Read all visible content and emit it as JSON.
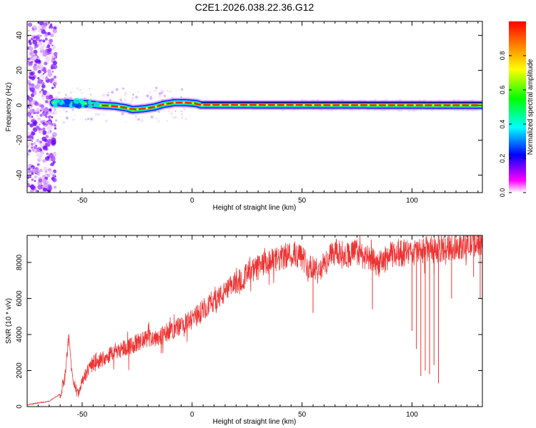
{
  "figure": {
    "title": "C2E1.2026.038.22.36.G12"
  },
  "chart_data": [
    {
      "type": "heatmap",
      "xlabel": "Height of straight line (km)",
      "ylabel": "Frequency (Hz)",
      "xlim": [
        -75,
        132
      ],
      "ylim": [
        -50,
        48
      ],
      "xticks": [
        -50,
        0,
        50,
        100
      ],
      "yticks": [
        -40,
        -20,
        0,
        20,
        40
      ],
      "colorbar": {
        "label": "Normalized spectral amplitude",
        "range": [
          0,
          1
        ],
        "ticks": [
          0.0,
          0.2,
          0.4,
          0.6,
          0.8
        ],
        "colormap": [
          "#ffffff",
          "#ff00ff",
          "#0000ff",
          "#00ffff",
          "#00ff00",
          "#ffff00",
          "#ff8000",
          "#ff0000"
        ]
      },
      "ridge": [
        {
          "x": -63,
          "y": 1.5
        },
        {
          "x": -55,
          "y": 1.0
        },
        {
          "x": -48,
          "y": 1.0
        },
        {
          "x": -42,
          "y": 0.0
        },
        {
          "x": -35,
          "y": -0.5
        },
        {
          "x": -30,
          "y": -1.5
        },
        {
          "x": -27,
          "y": -2.5
        },
        {
          "x": -22,
          "y": -2.0
        },
        {
          "x": -17,
          "y": -1.0
        },
        {
          "x": -13,
          "y": 0.5
        },
        {
          "x": -8,
          "y": 1.5
        },
        {
          "x": -3,
          "y": 1.5
        },
        {
          "x": 2,
          "y": 1.0
        },
        {
          "x": 4,
          "y": 0.2
        },
        {
          "x": 132,
          "y": 0.0
        }
      ],
      "noise_region_x": [
        -75,
        -62
      ]
    },
    {
      "type": "line",
      "xlabel": "Height of straight line (km)",
      "ylabel": "SNR (10 * v/v)",
      "xlim": [
        -75,
        132
      ],
      "ylim": [
        0,
        9500
      ],
      "xticks": [
        -50,
        0,
        50,
        100
      ],
      "yticks": [
        0,
        2000,
        4000,
        6000,
        8000
      ],
      "color": "#ee3333",
      "series": [
        {
          "x": [
            -75,
            -65,
            -60,
            -58,
            -56,
            -55,
            -54,
            -52,
            -50,
            -45,
            -40,
            -35,
            -30,
            -25,
            -20,
            -15,
            -10,
            -5,
            0,
            5,
            10,
            15,
            20,
            25,
            30,
            35,
            40,
            45,
            50,
            53,
            57,
            60,
            65,
            70,
            75,
            80,
            85,
            90,
            95,
            100,
            105,
            110,
            115,
            120,
            125,
            132
          ],
          "y": [
            100,
            300,
            700,
            1500,
            4000,
            2200,
            1500,
            700,
            1500,
            2400,
            2700,
            3100,
            3300,
            3500,
            3800,
            3900,
            4200,
            4500,
            4800,
            5400,
            5900,
            6300,
            6900,
            7300,
            7700,
            8000,
            8200,
            8500,
            8300,
            7800,
            7500,
            7900,
            8600,
            8400,
            8600,
            8200,
            7900,
            8400,
            8500,
            8500,
            8700,
            8700,
            8800,
            8900,
            9000,
            9200
          ]
        }
      ],
      "dips": [
        {
          "x": 55,
          "y": 5200
        },
        {
          "x": 82,
          "y": 5400
        },
        {
          "x": 100,
          "y": 4200
        },
        {
          "x": 102,
          "y": 3200
        },
        {
          "x": 104,
          "y": 1700
        },
        {
          "x": 106,
          "y": 2000
        },
        {
          "x": 108,
          "y": 1800
        },
        {
          "x": 110,
          "y": 2300
        },
        {
          "x": 112,
          "y": 1300
        },
        {
          "x": 118,
          "y": 6000
        },
        {
          "x": 128,
          "y": 7200
        },
        {
          "x": 131,
          "y": 6000
        }
      ]
    }
  ]
}
